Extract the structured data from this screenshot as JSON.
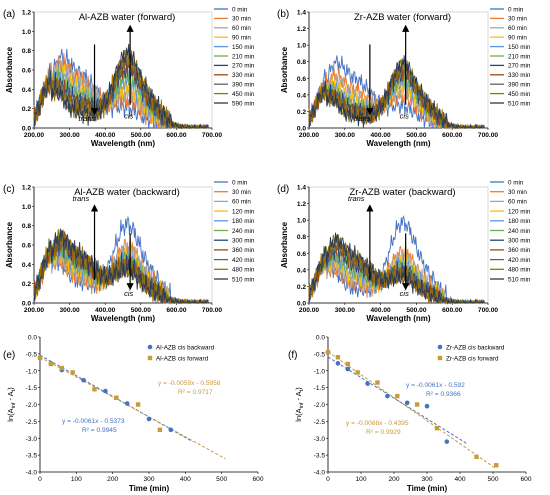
{
  "chart_data": [
    {
      "type": "line",
      "panel_label": "(a)",
      "title": "Al-AZB water (forward)",
      "xlabel": "Wavelength (nm)",
      "ylabel": "Absorbance",
      "xlim": [
        200,
        700
      ],
      "ylim": [
        0,
        1.2
      ],
      "x_ticks": [
        "200.00",
        "300.00",
        "400.00",
        "500.00",
        "600.00",
        "700.00"
      ],
      "y_ticks": [
        "0.0",
        "0.2",
        "0.4",
        "0.6",
        "0.8",
        "1.0",
        "1.2"
      ],
      "annotations": [
        "trans",
        "cis"
      ],
      "series": [
        {
          "name": "0 min",
          "color": "#4472c4",
          "peak": [
            0.98,
            0.24
          ]
        },
        {
          "name": "30 min",
          "color": "#ed7d31",
          "peak": [
            0.88,
            0.34
          ]
        },
        {
          "name": "60 min",
          "color": "#a5a5a5",
          "peak": [
            0.8,
            0.42
          ]
        },
        {
          "name": "90 min",
          "color": "#ffc000",
          "peak": [
            0.72,
            0.5
          ]
        },
        {
          "name": "150 min",
          "color": "#5b9bd5",
          "peak": [
            0.64,
            0.58
          ]
        },
        {
          "name": "210 min",
          "color": "#70ad47",
          "peak": [
            0.56,
            0.66
          ]
        },
        {
          "name": "270 min",
          "color": "#264478",
          "peak": [
            0.48,
            0.74
          ]
        },
        {
          "name": "330 min",
          "color": "#9e480e",
          "peak": [
            0.42,
            0.8
          ]
        },
        {
          "name": "390 min",
          "color": "#636363",
          "peak": [
            0.36,
            0.86
          ]
        },
        {
          "name": "450 min",
          "color": "#997300",
          "peak": [
            0.32,
            0.9
          ]
        },
        {
          "name": "590 min",
          "color": "#2b3a55",
          "peak": [
            0.28,
            0.94
          ]
        }
      ]
    },
    {
      "type": "line",
      "panel_label": "(b)",
      "title": "Zr-AZB water (forward)",
      "xlabel": "Wavelength (nm)",
      "ylabel": "Absorbance",
      "xlim": [
        200,
        700
      ],
      "ylim": [
        0,
        1.4
      ],
      "x_ticks": [
        "200.00",
        "300.00",
        "400.00",
        "500.00",
        "600.00",
        "700.00"
      ],
      "y_ticks": [
        "0.0",
        "0.2",
        "0.4",
        "0.6",
        "0.8",
        "1.0",
        "1.2",
        "1.4"
      ],
      "annotations": [
        "trans",
        "cis"
      ],
      "series": [
        {
          "name": "0 min",
          "color": "#4472c4",
          "peak": [
            1.05,
            0.3
          ]
        },
        {
          "name": "30 min",
          "color": "#ed7d31",
          "peak": [
            0.8,
            0.45
          ]
        },
        {
          "name": "60 min",
          "color": "#a5a5a5",
          "peak": [
            0.68,
            0.55
          ]
        },
        {
          "name": "90 min",
          "color": "#ffc000",
          "peak": [
            0.58,
            0.62
          ]
        },
        {
          "name": "150 min",
          "color": "#5b9bd5",
          "peak": [
            0.5,
            0.68
          ]
        },
        {
          "name": "210 min",
          "color": "#70ad47",
          "peak": [
            0.44,
            0.74
          ]
        },
        {
          "name": "270 min",
          "color": "#264478",
          "peak": [
            0.38,
            0.8
          ]
        },
        {
          "name": "330 min",
          "color": "#9e480e",
          "peak": [
            0.34,
            0.84
          ]
        },
        {
          "name": "390 min",
          "color": "#636363",
          "peak": [
            0.3,
            0.88
          ]
        },
        {
          "name": "450 min",
          "color": "#997300",
          "peak": [
            0.27,
            0.92
          ]
        },
        {
          "name": "510 min",
          "color": "#2b3a55",
          "peak": [
            0.24,
            0.95
          ]
        }
      ]
    },
    {
      "type": "line",
      "panel_label": "(c)",
      "title": "Al-AZB water (backward)",
      "xlabel": "Wavelength (nm)",
      "ylabel": "Absorbance",
      "xlim": [
        200,
        700
      ],
      "ylim": [
        0,
        1.2
      ],
      "x_ticks": [
        "200.00",
        "300.00",
        "400.00",
        "500.00",
        "600.00",
        "700.00"
      ],
      "y_ticks": [
        "0.0",
        "0.2",
        "0.4",
        "0.6",
        "0.8",
        "1.0",
        "1.2"
      ],
      "annotations": [
        "trans",
        "cis"
      ],
      "series": [
        {
          "name": "0 min",
          "color": "#4472c4",
          "peak": [
            0.4,
            1.0
          ]
        },
        {
          "name": "30 min",
          "color": "#ed7d31",
          "peak": [
            0.46,
            0.72
          ]
        },
        {
          "name": "60 min",
          "color": "#a5a5a5",
          "peak": [
            0.52,
            0.66
          ]
        },
        {
          "name": "120 min",
          "color": "#ffc000",
          "peak": [
            0.58,
            0.6
          ]
        },
        {
          "name": "180 min",
          "color": "#5b9bd5",
          "peak": [
            0.64,
            0.56
          ]
        },
        {
          "name": "240 min",
          "color": "#70ad47",
          "peak": [
            0.7,
            0.52
          ]
        },
        {
          "name": "300 min",
          "color": "#264478",
          "peak": [
            0.76,
            0.48
          ]
        },
        {
          "name": "360 min",
          "color": "#9e480e",
          "peak": [
            0.8,
            0.46
          ]
        },
        {
          "name": "420 min",
          "color": "#636363",
          "peak": [
            0.84,
            0.44
          ]
        },
        {
          "name": "480 min",
          "color": "#997300",
          "peak": [
            0.86,
            0.42
          ]
        },
        {
          "name": "510 min",
          "color": "#2b3a55",
          "peak": [
            0.88,
            0.4
          ]
        }
      ]
    },
    {
      "type": "line",
      "panel_label": "(d)",
      "title": "Zr-AZB water (backward)",
      "xlabel": "Wavelength (nm)",
      "ylabel": "Absorbance",
      "xlim": [
        200,
        700
      ],
      "ylim": [
        0,
        1.4
      ],
      "x_ticks": [
        "200.00",
        "300.00",
        "400.00",
        "500.00",
        "600.00",
        "700.00"
      ],
      "y_ticks": [
        "0.0",
        "0.2",
        "0.4",
        "0.6",
        "0.8",
        "1.0",
        "1.2",
        "1.4"
      ],
      "annotations": [
        "trans",
        "cis"
      ],
      "series": [
        {
          "name": "0 min",
          "color": "#4472c4",
          "peak": [
            0.3,
            1.2
          ]
        },
        {
          "name": "30 min",
          "color": "#ed7d31",
          "peak": [
            0.4,
            0.75
          ]
        },
        {
          "name": "60 min",
          "color": "#a5a5a5",
          "peak": [
            0.48,
            0.68
          ]
        },
        {
          "name": "120 min",
          "color": "#ffc000",
          "peak": [
            0.56,
            0.62
          ]
        },
        {
          "name": "180 min",
          "color": "#5b9bd5",
          "peak": [
            0.64,
            0.56
          ]
        },
        {
          "name": "240 min",
          "color": "#70ad47",
          "peak": [
            0.72,
            0.5
          ]
        },
        {
          "name": "300 min",
          "color": "#264478",
          "peak": [
            0.8,
            0.46
          ]
        },
        {
          "name": "360 min",
          "color": "#9e480e",
          "peak": [
            0.86,
            0.42
          ]
        },
        {
          "name": "420 min",
          "color": "#636363",
          "peak": [
            0.92,
            0.4
          ]
        },
        {
          "name": "480 min",
          "color": "#997300",
          "peak": [
            0.96,
            0.38
          ]
        },
        {
          "name": "510 min",
          "color": "#2b3a55",
          "peak": [
            1.0,
            0.36
          ]
        }
      ]
    },
    {
      "type": "scatter",
      "panel_label": "(e)",
      "xlabel": "Time (min)",
      "ylabel": "ln(A∞t - At)",
      "ylabel_main": "ln(A",
      "ylabel_sub": "inf",
      "ylabel_tail": " - A",
      "ylabel_sub2": "t",
      "ylabel_end": ")",
      "xlim": [
        0,
        600
      ],
      "ylim": [
        -4.0,
        0.0
      ],
      "x_ticks": [
        "0",
        "100",
        "200",
        "300",
        "400",
        "500",
        "600"
      ],
      "y_ticks": [
        "0.0",
        "-0.5",
        "-1.0",
        "-1.5",
        "-2.0",
        "-2.5",
        "-3.0",
        "-3.5",
        "-4.0"
      ],
      "series": [
        {
          "name": "Al-AZB cis backward",
          "color": "#4472c4",
          "marker": "circle",
          "x": [
            0,
            30,
            60,
            120,
            180,
            240,
            300,
            360
          ],
          "y": [
            -0.62,
            -0.78,
            -0.98,
            -1.28,
            -1.6,
            -1.97,
            -2.43,
            -2.75
          ],
          "fit_text": "y = -0.0061x - 0.5373",
          "r2_text": "R² = 0.9945",
          "fit": {
            "slope": -0.0061,
            "intercept": -0.5373
          }
        },
        {
          "name": "Al-AZB cis forward",
          "color": "#c99a3c",
          "marker": "square",
          "x": [
            0,
            30,
            60,
            90,
            150,
            210,
            270,
            330
          ],
          "y": [
            -0.62,
            -0.8,
            -0.92,
            -1.05,
            -1.55,
            -1.8,
            -2.0,
            -2.75
          ],
          "fit_text": "y = -0.0059x - 0.5958",
          "r2_text": "R² = 0.9717",
          "fit": {
            "slope": -0.0059,
            "intercept": -0.5958
          }
        }
      ]
    },
    {
      "type": "scatter",
      "panel_label": "(f)",
      "xlabel": "Time (min)",
      "ylabel": "ln(A∞t - At)",
      "ylabel_main": "ln(A",
      "ylabel_sub": "inf",
      "ylabel_tail": " - A",
      "ylabel_sub2": "t",
      "ylabel_end": ")",
      "xlim": [
        0,
        600
      ],
      "ylim": [
        -4.0,
        0.0
      ],
      "x_ticks": [
        "0",
        "100",
        "200",
        "300",
        "400",
        "500",
        "600"
      ],
      "y_ticks": [
        "0.0",
        "-0.5",
        "-1.0",
        "-1.5",
        "-2.0",
        "-2.5",
        "-3.0",
        "-3.5",
        "-4.0"
      ],
      "series": [
        {
          "name": "Zr-AZB cis backward",
          "color": "#4472c4",
          "marker": "circle",
          "x": [
            0,
            30,
            60,
            120,
            180,
            240,
            300,
            360
          ],
          "y": [
            -0.45,
            -0.78,
            -0.95,
            -1.38,
            -1.75,
            -1.95,
            -2.05,
            -3.1
          ],
          "fit_text": "y = -0.0061x - 0.592",
          "r2_text": "R² = 0.9366",
          "fit": {
            "slope": -0.0061,
            "intercept": -0.592
          }
        },
        {
          "name": "Zr-AZB cis forward",
          "color": "#c99a3c",
          "marker": "square",
          "x": [
            0,
            30,
            60,
            90,
            150,
            210,
            270,
            330,
            450,
            510
          ],
          "y": [
            -0.45,
            -0.6,
            -0.8,
            -1.05,
            -1.35,
            -1.75,
            -2.0,
            -2.7,
            -3.55,
            -3.8
          ],
          "fit_text": "y = -0.0068x - 0.4395",
          "r2_text": "R² = 0.9929",
          "fit": {
            "slope": -0.0068,
            "intercept": -0.4395
          }
        }
      ]
    }
  ]
}
